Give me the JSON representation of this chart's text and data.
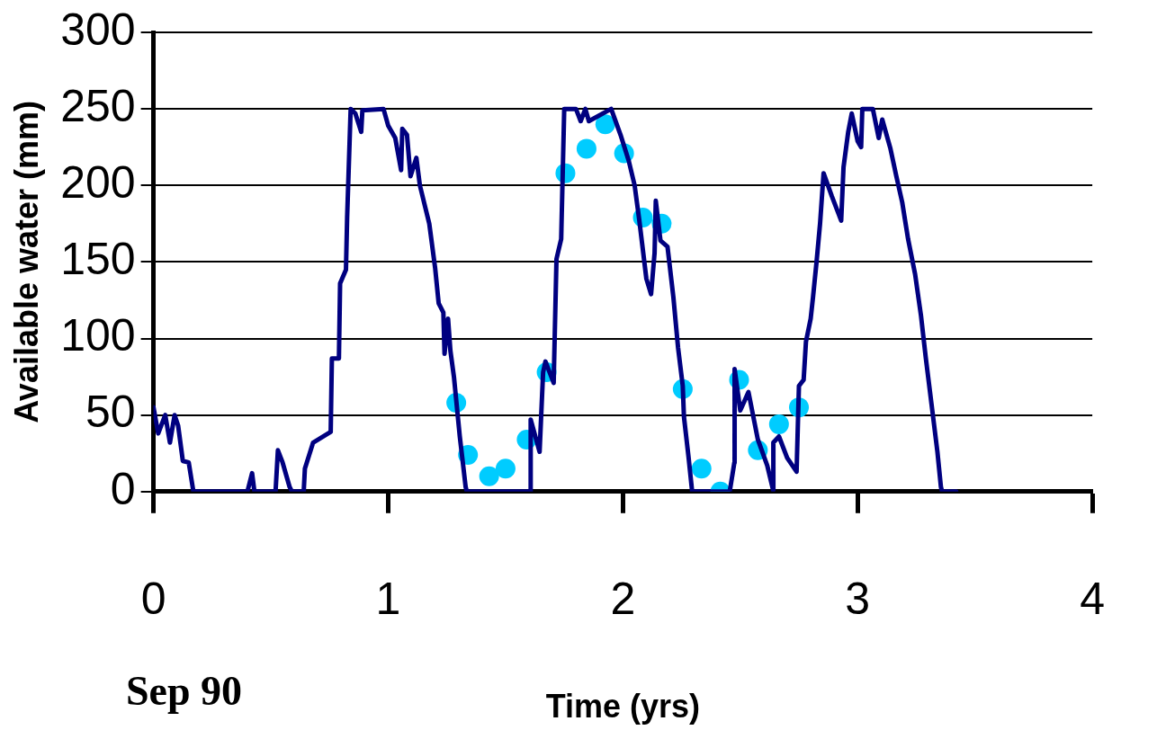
{
  "chart_data": {
    "type": "line",
    "xlabel": "Time (yrs)",
    "ylabel": "Available water (mm)",
    "annotations": [
      "Sep 90"
    ],
    "xlim": [
      0,
      4
    ],
    "ylim": [
      0,
      300
    ],
    "xticks": [
      0,
      1,
      2,
      3,
      4
    ],
    "yticks": [
      0,
      50,
      100,
      150,
      200,
      250,
      300
    ],
    "grid": "y",
    "series": [
      {
        "color": "#000080",
        "marker": "none",
        "line_style": "solid",
        "x": [
          0,
          0.02,
          0.05,
          0.07,
          0.09,
          0.105,
          0.125,
          0.15,
          0.17,
          0.4,
          0.42,
          0.43,
          0.52,
          0.53,
          0.55,
          0.58,
          0.59,
          0.64,
          0.645,
          0.68,
          0.755,
          0.76,
          0.79,
          0.795,
          0.82,
          0.825,
          0.84,
          0.86,
          0.885,
          0.89,
          0.98,
          1.0,
          1.03,
          1.055,
          1.06,
          1.08,
          1.095,
          1.12,
          1.135,
          1.175,
          1.2,
          1.215,
          1.235,
          1.24,
          1.255,
          1.265,
          1.28,
          1.305,
          1.33,
          1.335,
          1.605,
          1.607,
          1.645,
          1.66,
          1.67,
          1.705,
          1.717,
          1.737,
          1.75,
          1.8,
          1.82,
          1.84,
          1.855,
          1.95,
          1.99,
          2.025,
          2.05,
          2.07,
          2.1,
          2.12,
          2.135,
          2.14,
          2.16,
          2.19,
          2.215,
          2.235,
          2.255,
          2.26,
          2.28,
          2.295,
          2.455,
          2.475,
          2.476,
          2.5,
          2.535,
          2.575,
          2.615,
          2.64,
          2.641,
          2.665,
          2.7,
          2.74,
          2.75,
          2.77,
          2.78,
          2.8,
          2.81,
          2.825,
          2.84,
          2.855,
          2.89,
          2.93,
          2.94,
          2.96,
          2.975,
          3.0,
          3.015,
          3.02,
          3.065,
          3.09,
          3.105,
          3.14,
          3.165,
          3.19,
          3.215,
          3.245,
          3.27,
          3.29,
          3.315,
          3.34,
          3.355,
          3.36,
          3.42
        ],
        "values": [
          55,
          38,
          50,
          32,
          50,
          43,
          20,
          19,
          0,
          0,
          12,
          0,
          0,
          27,
          19,
          3,
          0,
          0,
          15,
          32,
          39,
          87,
          87,
          136,
          145,
          179,
          250,
          247,
          235,
          249,
          250,
          239,
          231,
          210,
          237,
          233,
          206,
          218,
          200,
          175,
          146,
          123,
          117,
          90,
          113,
          92,
          75,
          36,
          3,
          0,
          0,
          47,
          26,
          78,
          85,
          71,
          152,
          165,
          250,
          250,
          242,
          250,
          242,
          250,
          233,
          216,
          200,
          177,
          139,
          129,
          156,
          190,
          164,
          160,
          127,
          94,
          69,
          49,
          22,
          0,
          0,
          19,
          80,
          53,
          65,
          34,
          17,
          1,
          32,
          36,
          22,
          13,
          69,
          73,
          98,
          113,
          127,
          150,
          175,
          208,
          193,
          177,
          212,
          235,
          247,
          229,
          225,
          250,
          250,
          231,
          243,
          224,
          206,
          189,
          165,
          142,
          115,
          88,
          57,
          26,
          3,
          0,
          0
        ]
      },
      {
        "type": "scatter",
        "color": "#00ccff",
        "marker": "circle",
        "x": [
          1.29,
          1.34,
          1.43,
          1.5,
          1.59,
          1.675,
          1.755,
          1.845,
          1.925,
          2.005,
          2.085,
          2.165,
          2.255,
          2.335,
          2.415,
          2.495,
          2.575,
          2.665,
          2.75
        ],
        "values": [
          58,
          24,
          10,
          15,
          34,
          78,
          208,
          224,
          240,
          221,
          179,
          175,
          67,
          15,
          0,
          73,
          27,
          44,
          55
        ]
      }
    ]
  }
}
